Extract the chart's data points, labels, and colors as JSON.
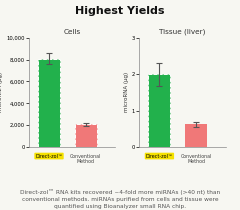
{
  "title": "Highest Yields",
  "title_fontsize": 8,
  "background_color": "#f7f7f2",
  "panels": [
    {
      "subtitle": "Cells",
      "ylabel": "microRNA (pg)",
      "ylim": [
        0,
        10000
      ],
      "yticks": [
        0,
        2000,
        4000,
        6000,
        8000,
        10000
      ],
      "bars": [
        {
          "label": "Direct-zol™",
          "value": 8100,
          "color": "#22b14c",
          "error": 480,
          "label_bg": "#f5e100",
          "dashed": true
        },
        {
          "label": "Conventional\nMethod",
          "value": 2100,
          "color": "#f07878",
          "error": 140,
          "dashed": true
        }
      ]
    },
    {
      "subtitle": "Tissue (liver)",
      "ylabel": "microRNA (µg)",
      "ylim": [
        0,
        3
      ],
      "yticks": [
        0,
        1,
        2,
        3
      ],
      "bars": [
        {
          "label": "Direct-zol™",
          "value": 2.0,
          "color": "#22b14c",
          "error": 0.32,
          "label_bg": "#f5e100",
          "dashed": true
        },
        {
          "label": "Conventional\nMethod",
          "value": 0.63,
          "color": "#f07878",
          "error": 0.07,
          "dashed": false
        }
      ]
    }
  ],
  "footer": "Direct-zol™ RNA kits recovered ~4-fold more miRNAs (>40 nt) than\nconventional methods. miRNAs purified from cells and tissue were\nquantified using Bioanalyzer small RNA chip.",
  "footer_fontsize": 4.2
}
